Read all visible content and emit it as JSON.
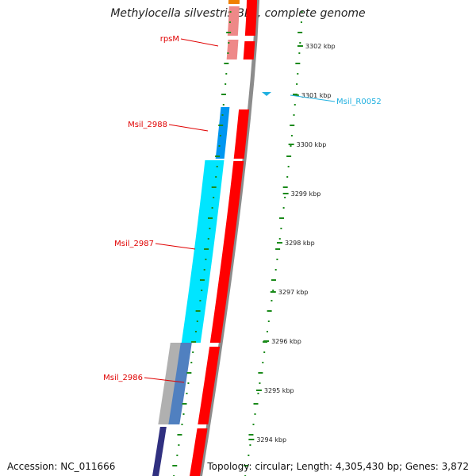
{
  "title": "Methylocella silvestris BL2, complete genome",
  "accession": "Accession: NC_011666",
  "topology": "Topology: circular; Length: 4,305,430 bp; Genes: 3,872",
  "colors": {
    "red": "#ff0000",
    "pink": "#ee8888",
    "cyan": "#00e5ff",
    "blue": "#0096f0",
    "steel": "#5080c0",
    "navy": "#303080",
    "gray": "#b0b0b0",
    "backbone": "#8c8c8c",
    "tick": "#1a8a1a",
    "label_red": "#e00000",
    "label_cyan": "#20b0e0",
    "orange": "#f08000"
  },
  "ticks": [
    {
      "label": "3302 kbp"
    },
    {
      "label": "3301 kbp"
    },
    {
      "label": "3300 kbp"
    },
    {
      "label": "3299 kbp"
    },
    {
      "label": "3298 kbp"
    },
    {
      "label": "3297 kbp"
    },
    {
      "label": "3296 kbp"
    },
    {
      "label": "3295 kbp"
    },
    {
      "label": "3294 kbp"
    }
  ],
  "gene_labels": [
    {
      "name": "rpsM",
      "color": "label_red"
    },
    {
      "name": "Msil_2988",
      "color": "label_red"
    },
    {
      "name": "Msil_2987",
      "color": "label_red"
    },
    {
      "name": "Msil_2986",
      "color": "label_red"
    },
    {
      "name": "Msil_R0052",
      "color": "label_cyan"
    }
  ]
}
